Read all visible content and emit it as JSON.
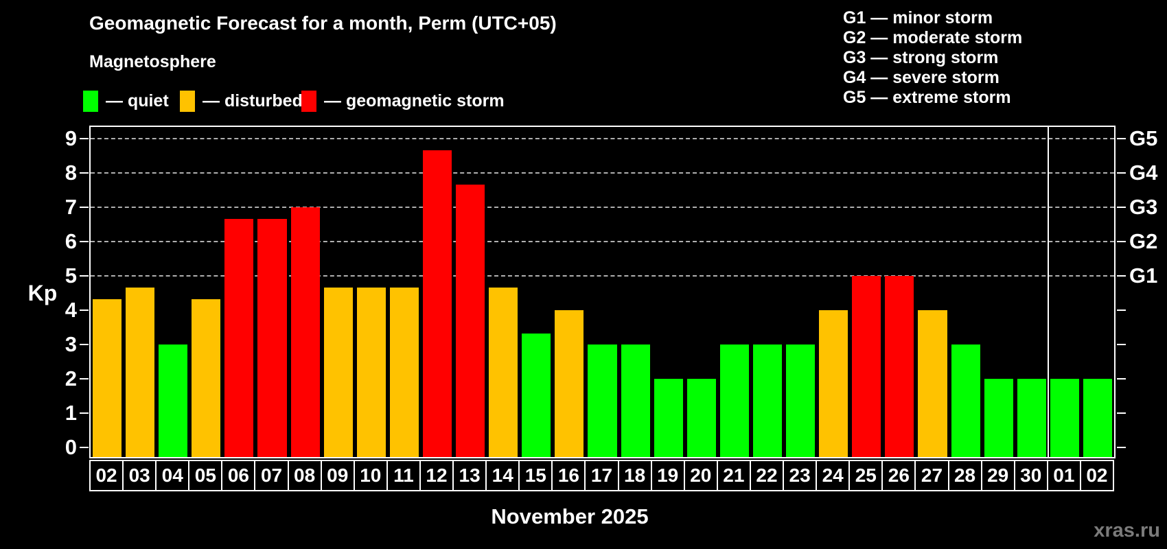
{
  "header": {
    "title": "Geomagnetic Forecast for a month, Perm (UTC+05)",
    "subtitle": "Magnetosphere"
  },
  "legend": {
    "items": [
      {
        "key": "quiet",
        "label": "— quiet",
        "color": "#00ff00"
      },
      {
        "key": "disturbed",
        "label": "— disturbed",
        "color": "#ffc200"
      },
      {
        "key": "storm",
        "label": "— geomagnetic storm",
        "color": "#ff0000"
      }
    ]
  },
  "gscale": {
    "items": [
      {
        "label": "G1 — minor storm"
      },
      {
        "label": "G2 — moderate storm"
      },
      {
        "label": "G3 — strong storm"
      },
      {
        "label": "G4 — severe storm"
      },
      {
        "label": "G5 — extreme storm"
      }
    ]
  },
  "axis": {
    "kp_label": "Kp"
  },
  "footer": {
    "month_label": "November 2025",
    "watermark": "xras.ru"
  },
  "chart_data": {
    "type": "bar",
    "title": "Geomagnetic Forecast for a month, Perm (UTC+05)",
    "xlabel": "November 2025",
    "ylabel": "Kp",
    "ylim": [
      0,
      9.4
    ],
    "grid": "horizontal dashed lines at Kp 5-9",
    "legend_position": "top",
    "categories": [
      "02",
      "03",
      "04",
      "05",
      "06",
      "07",
      "08",
      "09",
      "10",
      "11",
      "12",
      "13",
      "14",
      "15",
      "16",
      "17",
      "18",
      "19",
      "20",
      "21",
      "22",
      "23",
      "24",
      "25",
      "26",
      "27",
      "28",
      "29",
      "30",
      "01",
      "02"
    ],
    "values": [
      4.33,
      4.67,
      3,
      4.33,
      6.67,
      6.67,
      7,
      4.67,
      4.67,
      4.67,
      8.67,
      7.67,
      4.67,
      3.33,
      4,
      3,
      3,
      2,
      2,
      3,
      3,
      3,
      4,
      5,
      5,
      4,
      3,
      2,
      2,
      2,
      2
    ],
    "status": [
      "disturbed",
      "disturbed",
      "quiet",
      "disturbed",
      "storm",
      "storm",
      "storm",
      "disturbed",
      "disturbed",
      "disturbed",
      "storm",
      "storm",
      "disturbed",
      "quiet",
      "disturbed",
      "quiet",
      "quiet",
      "quiet",
      "quiet",
      "quiet",
      "quiet",
      "quiet",
      "disturbed",
      "storm",
      "storm",
      "disturbed",
      "quiet",
      "quiet",
      "quiet",
      "quiet",
      "quiet"
    ],
    "status_colors": {
      "quiet": "#00ff00",
      "disturbed": "#ffc200",
      "storm": "#ff0000"
    },
    "y_ticks": [
      0,
      1,
      2,
      3,
      4,
      5,
      6,
      7,
      8,
      9
    ],
    "gridlines_kp": [
      5,
      6,
      7,
      8,
      9
    ],
    "right_axis_labels": {
      "5": "G1",
      "6": "G2",
      "7": "G3",
      "8": "G4",
      "9": "G5"
    },
    "month_separator_before_category_index": 29
  }
}
